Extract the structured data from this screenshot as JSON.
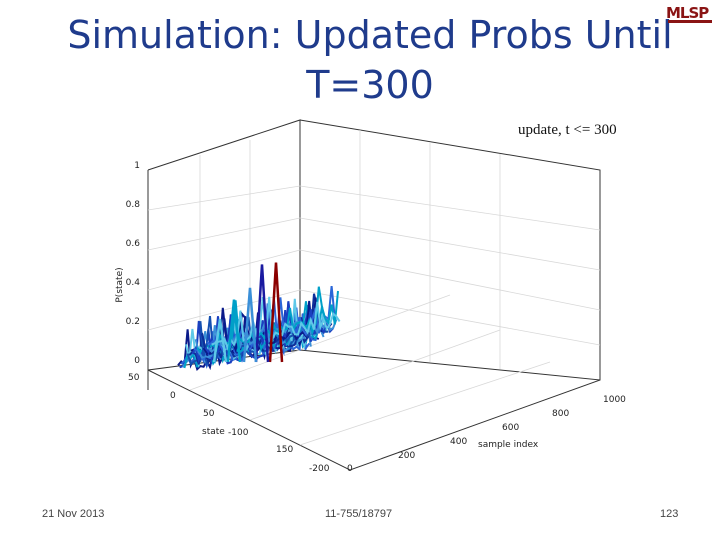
{
  "slide": {
    "title_line1": "Simulation: Updated Probs Until",
    "title_line2": "T=300",
    "logo_text": "MLSP",
    "figure_title": "update, t <= 300",
    "footer": {
      "date": "21 Nov 2013",
      "course": "11-755/18797",
      "page": "123"
    }
  },
  "chart_data": {
    "type": "line",
    "title": "update, t <= 300",
    "zlabel": "P(state)",
    "ylabel": "state",
    "xlabel": "sample index",
    "z_ticks": [
      "0",
      "0.2",
      "0.4",
      "0.6",
      "0.8",
      "1"
    ],
    "state_ticks": [
      "50",
      "0",
      "50",
      "-100",
      "150",
      "-200"
    ],
    "sample_ticks": [
      "0",
      "200",
      "400",
      "600",
      "800",
      "1000"
    ],
    "zlim": [
      0,
      1
    ],
    "sample_range": [
      0,
      1000
    ],
    "grid": true,
    "peaks": [
      {
        "color": "#8b0000",
        "value": 0.51
      },
      {
        "color": "#1a1aa0",
        "value": 0.5
      },
      {
        "color": "#3a8fd8",
        "value": 0.38
      },
      {
        "color": "#00a0c8",
        "value": 0.32
      },
      {
        "color": "#5ec8e8",
        "value": 0.22
      }
    ]
  }
}
